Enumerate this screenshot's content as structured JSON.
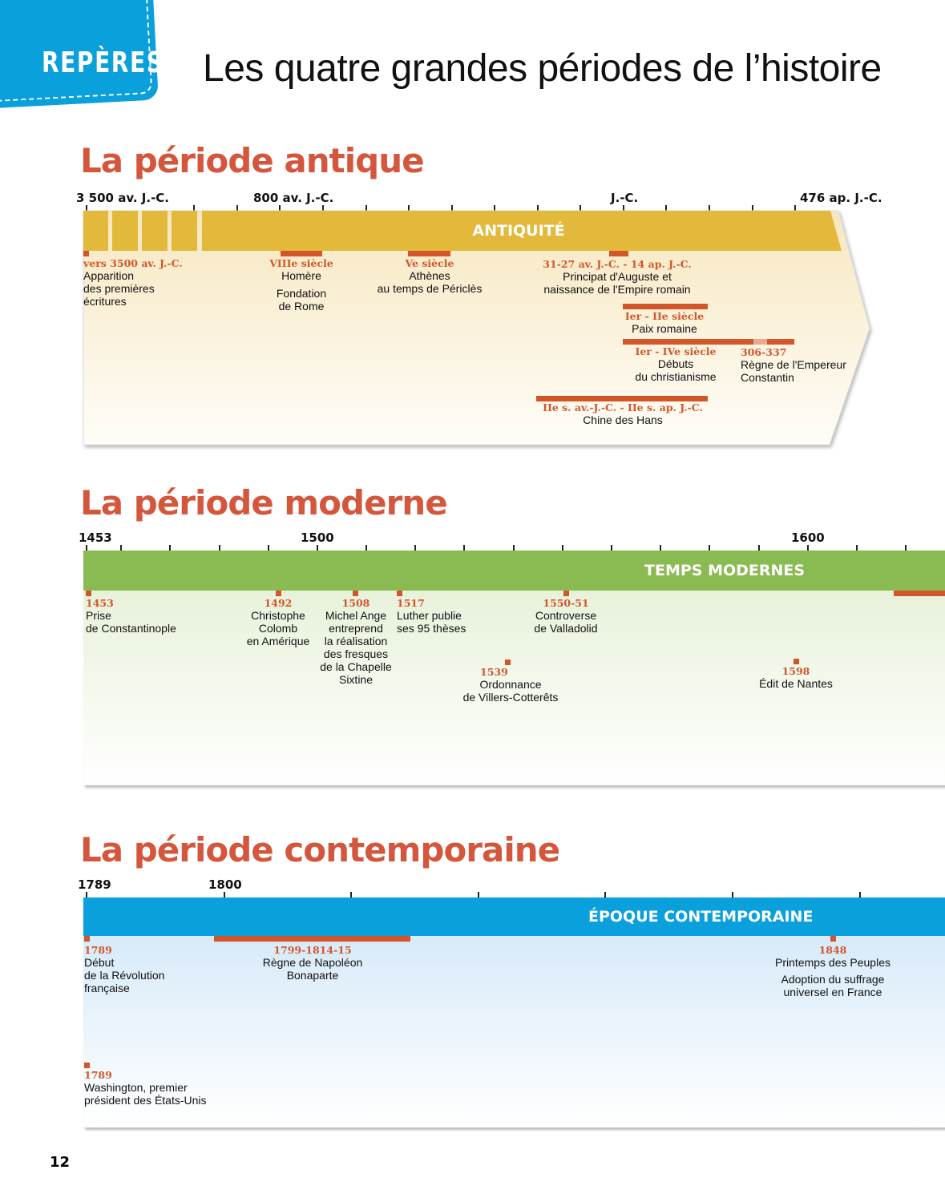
{
  "badge": "REPÈRES",
  "title": "Les quatre grandes périodes de l’histoire",
  "page_number": "12",
  "colors": {
    "badge": "#0aa0dc",
    "section_title": "#d4573d",
    "antique": "#e2b93b",
    "moderne": "#8aba52",
    "contemporaine": "#0aa0dc",
    "event": "#d2562a"
  },
  "antique": {
    "title": "La période antique",
    "axis": [
      "3 500 av. J.-C.",
      "800 av. J.-C.",
      "J.-C.",
      "476 ap. J.-C."
    ],
    "band": "ANTIQUITÉ",
    "events": [
      {
        "date": "vers 3500 av. J.-C.",
        "text": "Apparition\ndes premières\nécritures"
      },
      {
        "date": "VIIIe siècle",
        "text": "Homère"
      },
      {
        "date": "",
        "text": "Fondation\nde Rome"
      },
      {
        "date": "Ve siècle",
        "text": "Athènes\nau temps de Périclès"
      },
      {
        "date": "31-27 av. J.-C. - 14 ap. J.-C.",
        "text": "Principat d'Auguste et\nnaissance de l'Empire romain"
      },
      {
        "date": "Ier - IIe siècle",
        "text": "Paix romaine"
      },
      {
        "date": "Ier - IVe siècle",
        "text": "Débuts\ndu christianisme"
      },
      {
        "date": "306-337",
        "text": "Règne de l'Empereur\nConstantin"
      },
      {
        "date": "IIe s. av.-J.-C. - IIe s. ap. J.-C.",
        "text": "Chine des Hans"
      }
    ]
  },
  "moderne": {
    "title": "La période moderne",
    "axis": [
      "1453",
      "1500",
      "1600"
    ],
    "band": "TEMPS MODERNES",
    "events": [
      {
        "date": "1453",
        "text": "Prise\nde Constantinople"
      },
      {
        "date": "1492",
        "text": "Christophe\nColomb\nen Amérique"
      },
      {
        "date": "1508",
        "text": "Michel Ange\nentreprend\nla réalisation\ndes fresques\nde la Chapelle\nSixtine"
      },
      {
        "date": "1517",
        "text": "Luther publie\nses 95 thèses"
      },
      {
        "date": "1550-51",
        "text": "Controverse\nde Valladolid"
      },
      {
        "date": "1539",
        "text": "Ordonnance\nde Villers-Cotterêts"
      },
      {
        "date": "1598",
        "text": "Édit de Nantes"
      }
    ]
  },
  "contemporaine": {
    "title": "La période contemporaine",
    "axis": [
      "1789",
      "1800"
    ],
    "band": "ÉPOQUE CONTEMPORAINE",
    "events": [
      {
        "date": "1789",
        "text": "Début\nde la Révolution\nfrançaise"
      },
      {
        "date": "1799-1814-15",
        "text": "Règne de Napoléon\nBonaparte"
      },
      {
        "date": "1848",
        "text": "Printemps des Peuples"
      },
      {
        "date": "",
        "text": "Adoption du suffrage\nuniversel en France"
      },
      {
        "date": "1789",
        "text": "Washington, premier\nprésident des États-Unis"
      }
    ]
  }
}
